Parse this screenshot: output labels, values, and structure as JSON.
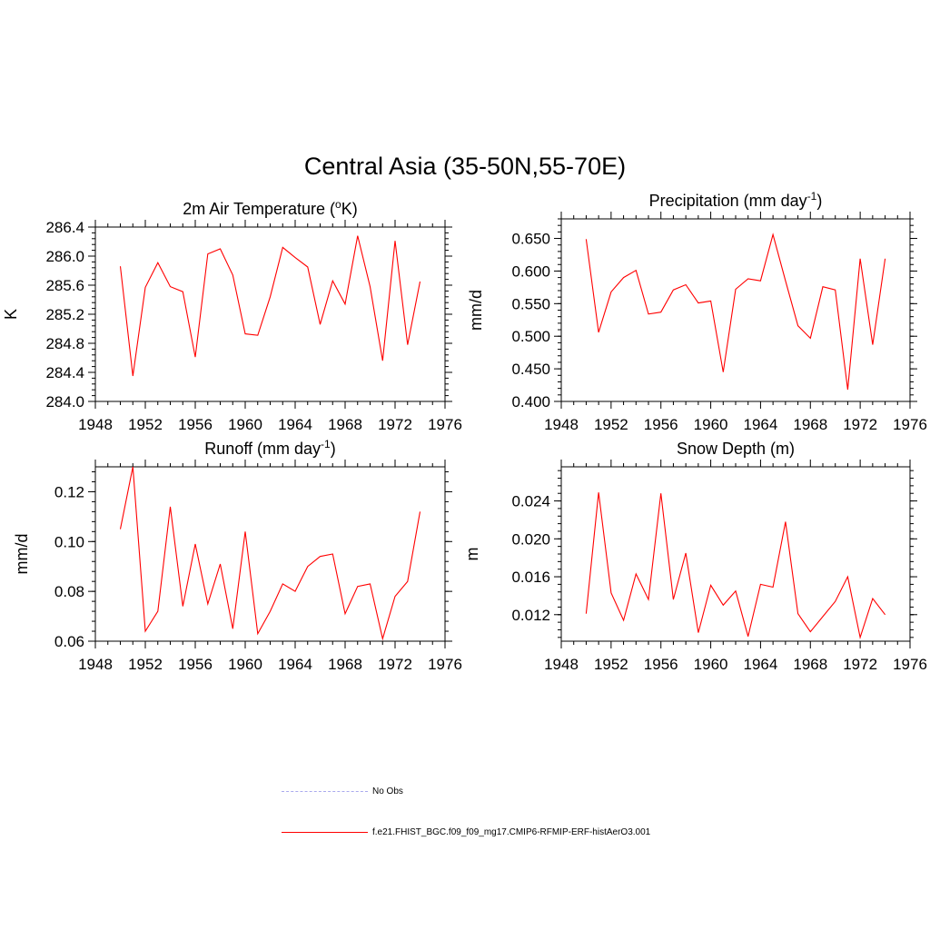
{
  "title": "Central Asia (35-50N,55-70E)",
  "colors": {
    "model": "#ff0000",
    "obs": "#aaaaee"
  },
  "legend": {
    "obs_label": "No Obs",
    "model_label": "f.e21.FHIST_BGC.f09_f09_mg17.CMIP6-RFMIP-ERF-histAerO3.001"
  },
  "chart_data": [
    {
      "type": "line",
      "title": "2m Air Temperature (",
      "title_sup_pre": "o",
      "title_mid": "K)",
      "title_sup": "",
      "title_end": "",
      "ylabel": "K",
      "xlim": [
        1948,
        1976
      ],
      "ylim": [
        284.0,
        286.4
      ],
      "xticks": [
        1948,
        1952,
        1956,
        1960,
        1964,
        1968,
        1972,
        1976
      ],
      "yticks": [
        "284.0",
        "284.4",
        "284.8",
        "285.2",
        "285.6",
        "286.0",
        "286.4"
      ],
      "x": [
        1950,
        1951,
        1952,
        1953,
        1954,
        1955,
        1956,
        1957,
        1958,
        1959,
        1960,
        1961,
        1962,
        1963,
        1964,
        1965,
        1966,
        1967,
        1968,
        1969,
        1970,
        1971,
        1972,
        1973,
        1974
      ],
      "series": [
        {
          "values": [
            285.86,
            284.35,
            285.57,
            285.91,
            285.58,
            285.51,
            284.61,
            286.03,
            286.1,
            285.74,
            284.93,
            284.91,
            285.44,
            286.12,
            285.98,
            285.85,
            285.06,
            285.66,
            285.34,
            286.28,
            285.58,
            284.56,
            286.21,
            284.78,
            285.65
          ]
        }
      ]
    },
    {
      "type": "line",
      "title": "Precipitation (mm day",
      "title_sup_pre": "",
      "title_mid": "",
      "title_sup": "-1",
      "title_end": ")",
      "ylabel": "mm/d",
      "xlim": [
        1948,
        1976
      ],
      "ylim": [
        0.4,
        0.68
      ],
      "xticks": [
        1948,
        1952,
        1956,
        1960,
        1964,
        1968,
        1972,
        1976
      ],
      "yticks": [
        "0.400",
        "0.450",
        "0.500",
        "0.550",
        "0.600",
        "0.650"
      ],
      "x": [
        1950,
        1951,
        1952,
        1953,
        1954,
        1955,
        1956,
        1957,
        1958,
        1959,
        1960,
        1961,
        1962,
        1963,
        1964,
        1965,
        1966,
        1967,
        1968,
        1969,
        1970,
        1971,
        1972,
        1973,
        1974
      ],
      "series": [
        {
          "values": [
            0.649,
            0.506,
            0.568,
            0.59,
            0.601,
            0.534,
            0.537,
            0.571,
            0.579,
            0.551,
            0.554,
            0.445,
            0.572,
            0.588,
            0.585,
            0.656,
            0.585,
            0.516,
            0.497,
            0.576,
            0.571,
            0.418,
            0.619,
            0.487,
            0.619
          ]
        }
      ]
    },
    {
      "type": "line",
      "title": "Runoff (mm day",
      "title_sup_pre": "",
      "title_mid": "",
      "title_sup": "-1",
      "title_end": ")",
      "ylabel": "mm/d",
      "xlim": [
        1948,
        1976
      ],
      "ylim": [
        0.06,
        0.13
      ],
      "xticks": [
        1948,
        1952,
        1956,
        1960,
        1964,
        1968,
        1972,
        1976
      ],
      "yticks": [
        "0.06",
        "0.08",
        "0.10",
        "0.12"
      ],
      "x": [
        1950,
        1951,
        1952,
        1953,
        1954,
        1955,
        1956,
        1957,
        1958,
        1959,
        1960,
        1961,
        1962,
        1963,
        1964,
        1965,
        1966,
        1967,
        1968,
        1969,
        1970,
        1971,
        1972,
        1973,
        1974
      ],
      "series": [
        {
          "values": [
            0.105,
            0.13,
            0.064,
            0.072,
            0.114,
            0.074,
            0.099,
            0.075,
            0.091,
            0.065,
            0.104,
            0.063,
            0.072,
            0.083,
            0.08,
            0.09,
            0.094,
            0.095,
            0.071,
            0.082,
            0.083,
            0.061,
            0.078,
            0.084,
            0.112
          ]
        }
      ]
    },
    {
      "type": "line",
      "title": "Snow Depth (m)",
      "title_sup_pre": "",
      "title_mid": "",
      "title_sup": "",
      "title_end": "",
      "ylabel": "m",
      "xlim": [
        1948,
        1976
      ],
      "ylim": [
        0.0092,
        0.0276
      ],
      "xticks": [
        1948,
        1952,
        1956,
        1960,
        1964,
        1968,
        1972,
        1976
      ],
      "yticks": [
        "0.012",
        "0.016",
        "0.020",
        "0.024"
      ],
      "x": [
        1950,
        1951,
        1952,
        1953,
        1954,
        1955,
        1956,
        1957,
        1958,
        1959,
        1960,
        1961,
        1962,
        1963,
        1964,
        1965,
        1966,
        1967,
        1968,
        1969,
        1970,
        1971,
        1972,
        1973,
        1974
      ],
      "series": [
        {
          "values": [
            0.0121,
            0.0249,
            0.0143,
            0.0114,
            0.0163,
            0.0136,
            0.0248,
            0.0136,
            0.0185,
            0.0101,
            0.0151,
            0.013,
            0.0145,
            0.0097,
            0.0152,
            0.0149,
            0.0218,
            0.0121,
            0.0102,
            0.0118,
            0.0134,
            0.016,
            0.0096,
            0.0137,
            0.012
          ]
        }
      ]
    }
  ]
}
